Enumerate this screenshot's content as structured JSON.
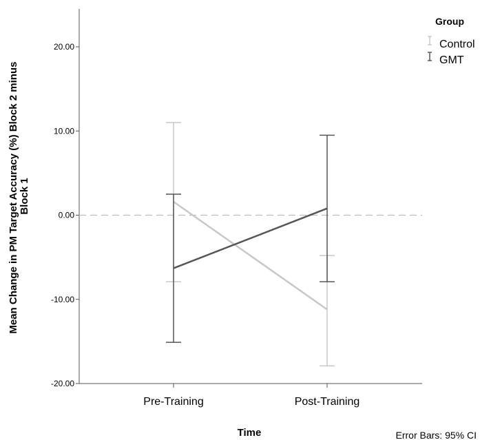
{
  "chart_data": {
    "type": "line",
    "categories": [
      "Pre-Training",
      "Post-Training"
    ],
    "xlabel": "Time",
    "ylabel_lines": [
      "Mean Change in PM Target Accuracy (%) Block 2 minus",
      "Block 1"
    ],
    "ylim": [
      -20,
      24.5
    ],
    "yticks": [
      20,
      10,
      0,
      -10,
      -20
    ],
    "ytick_labels": [
      "20.00",
      "10.00",
      "0.00",
      "-10.00",
      "-20.00"
    ],
    "reference_line": 0,
    "legend_title": "Group",
    "legend_position": "top-right",
    "footnote": "Error Bars: 95% CI",
    "grid": false,
    "series": [
      {
        "name": "Control",
        "color": "#c8c8c8",
        "values": [
          1.6,
          -11.2
        ],
        "ci_low": [
          -7.9,
          -17.9
        ],
        "ci_high": [
          11.0,
          -4.8
        ]
      },
      {
        "name": "GMT",
        "color": "#555555",
        "values": [
          -6.3,
          0.8
        ],
        "ci_low": [
          -15.1,
          -7.9
        ],
        "ci_high": [
          2.5,
          9.5
        ]
      }
    ]
  }
}
